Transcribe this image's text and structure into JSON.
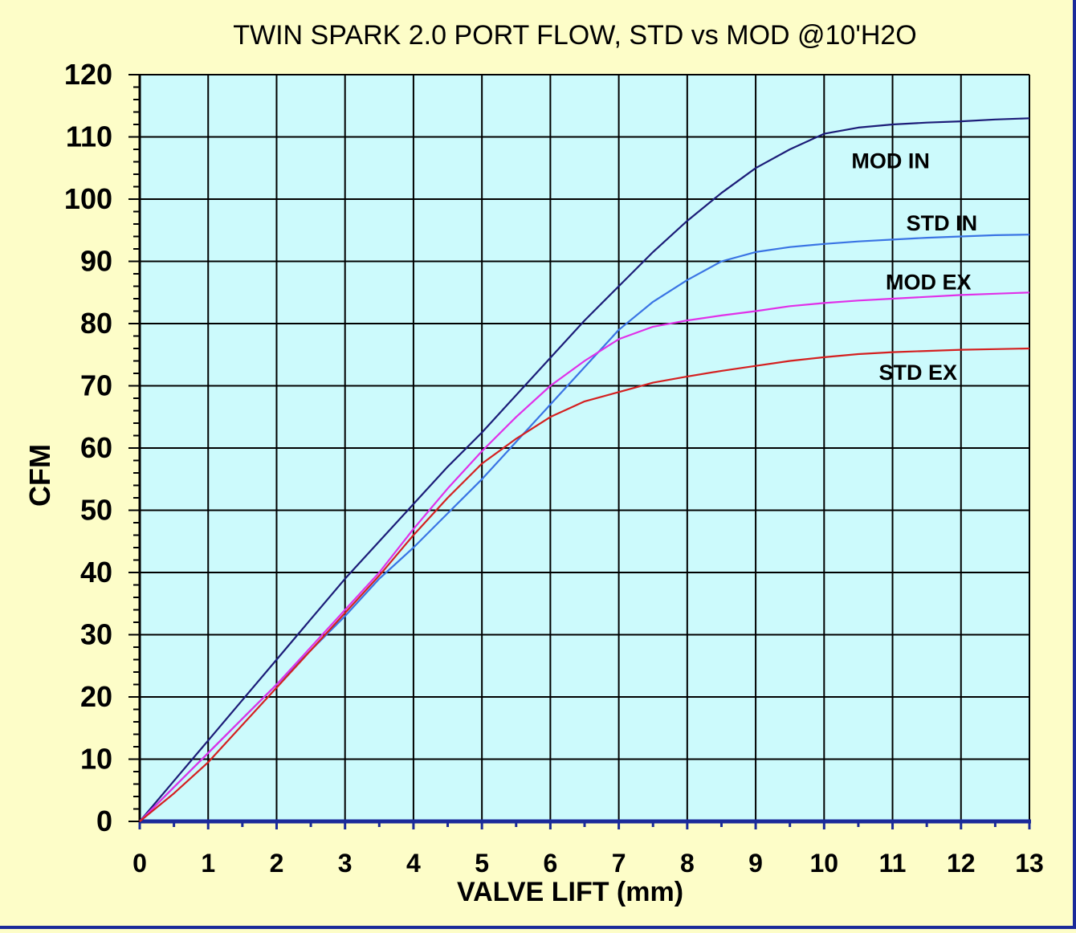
{
  "chart_data": {
    "type": "line",
    "title": "TWIN SPARK 2.0 PORT FLOW, STD vs MOD @10'H2O",
    "xlabel": "VALVE LIFT (mm)",
    "ylabel": "CFM",
    "xlim": [
      0,
      13
    ],
    "ylim": [
      0,
      120
    ],
    "xticks": [
      0,
      1,
      2,
      3,
      4,
      5,
      6,
      7,
      8,
      9,
      10,
      11,
      12,
      13
    ],
    "yticks": [
      0,
      10,
      20,
      30,
      40,
      50,
      60,
      70,
      80,
      90,
      100,
      110,
      120
    ],
    "grid": true,
    "colors": {
      "background": "#fdfdc8",
      "plot_area": "#ccfafc",
      "grid": "#000000",
      "axis": "#1a2a9a"
    },
    "series": [
      {
        "name": "MOD IN",
        "color": "#1c1c78",
        "label_pos": [
          10.4,
          105
        ],
        "x": [
          0,
          0.5,
          1,
          1.5,
          2,
          2.5,
          3,
          3.5,
          4,
          4.5,
          5,
          5.5,
          6,
          6.5,
          7,
          7.5,
          8,
          8.5,
          9,
          9.5,
          10,
          10.5,
          11,
          11.5,
          12,
          12.5,
          13
        ],
        "y": [
          0,
          6.5,
          13,
          19.5,
          26,
          32.5,
          39,
          45,
          51,
          57,
          62.5,
          68.5,
          74.5,
          80.5,
          86,
          91.5,
          96.5,
          101,
          105,
          108,
          110.5,
          111.5,
          112,
          112.3,
          112.5,
          112.8,
          113
        ]
      },
      {
        "name": "STD IN",
        "color": "#3a74e4",
        "label_pos": [
          11.2,
          95
        ],
        "x": [
          0,
          0.5,
          1,
          1.5,
          2,
          2.5,
          3,
          3.5,
          3.8,
          4,
          4.5,
          5,
          5.5,
          6,
          6.5,
          7,
          7.5,
          8,
          8.5,
          9,
          9.5,
          10,
          10.5,
          11,
          11.5,
          12,
          12.5,
          13
        ],
        "y": [
          0,
          5.5,
          11,
          16.5,
          22,
          27.5,
          33,
          39,
          42,
          44,
          49.5,
          55,
          61,
          67,
          73,
          79,
          83.5,
          87,
          90,
          91.5,
          92.3,
          92.8,
          93.2,
          93.5,
          93.8,
          94,
          94.2,
          94.3
        ]
      },
      {
        "name": "MOD EX",
        "color": "#e030e8",
        "label_pos": [
          10.9,
          85.5
        ],
        "x": [
          0,
          0.5,
          1,
          1.5,
          2,
          2.5,
          3,
          3.5,
          4,
          4.5,
          5,
          5.5,
          6,
          6.5,
          7,
          7.5,
          8,
          8.5,
          9,
          9.5,
          10,
          10.5,
          11,
          11.5,
          12,
          12.5,
          13
        ],
        "y": [
          0,
          5.5,
          11,
          16.5,
          22,
          28,
          34,
          40,
          47,
          53.5,
          59.5,
          65,
          70,
          74,
          77.5,
          79.5,
          80.5,
          81.3,
          82,
          82.8,
          83.3,
          83.7,
          84,
          84.3,
          84.6,
          84.8,
          85
        ]
      },
      {
        "name": "STD EX",
        "color": "#d42020",
        "label_pos": [
          10.8,
          71
        ],
        "x": [
          0,
          0.5,
          1,
          1.5,
          2,
          2.5,
          3,
          3.5,
          4,
          4.5,
          5,
          5.5,
          6,
          6.5,
          7,
          7.5,
          8,
          8.5,
          9,
          9.5,
          10,
          10.5,
          11,
          11.5,
          12,
          12.5,
          13
        ],
        "y": [
          0,
          4.5,
          9.5,
          15.5,
          21.5,
          27.5,
          33.5,
          39.5,
          46,
          52,
          57.5,
          61.5,
          65,
          67.5,
          69,
          70.5,
          71.5,
          72.4,
          73.2,
          74,
          74.6,
          75.1,
          75.4,
          75.6,
          75.8,
          75.9,
          76
        ]
      }
    ]
  }
}
